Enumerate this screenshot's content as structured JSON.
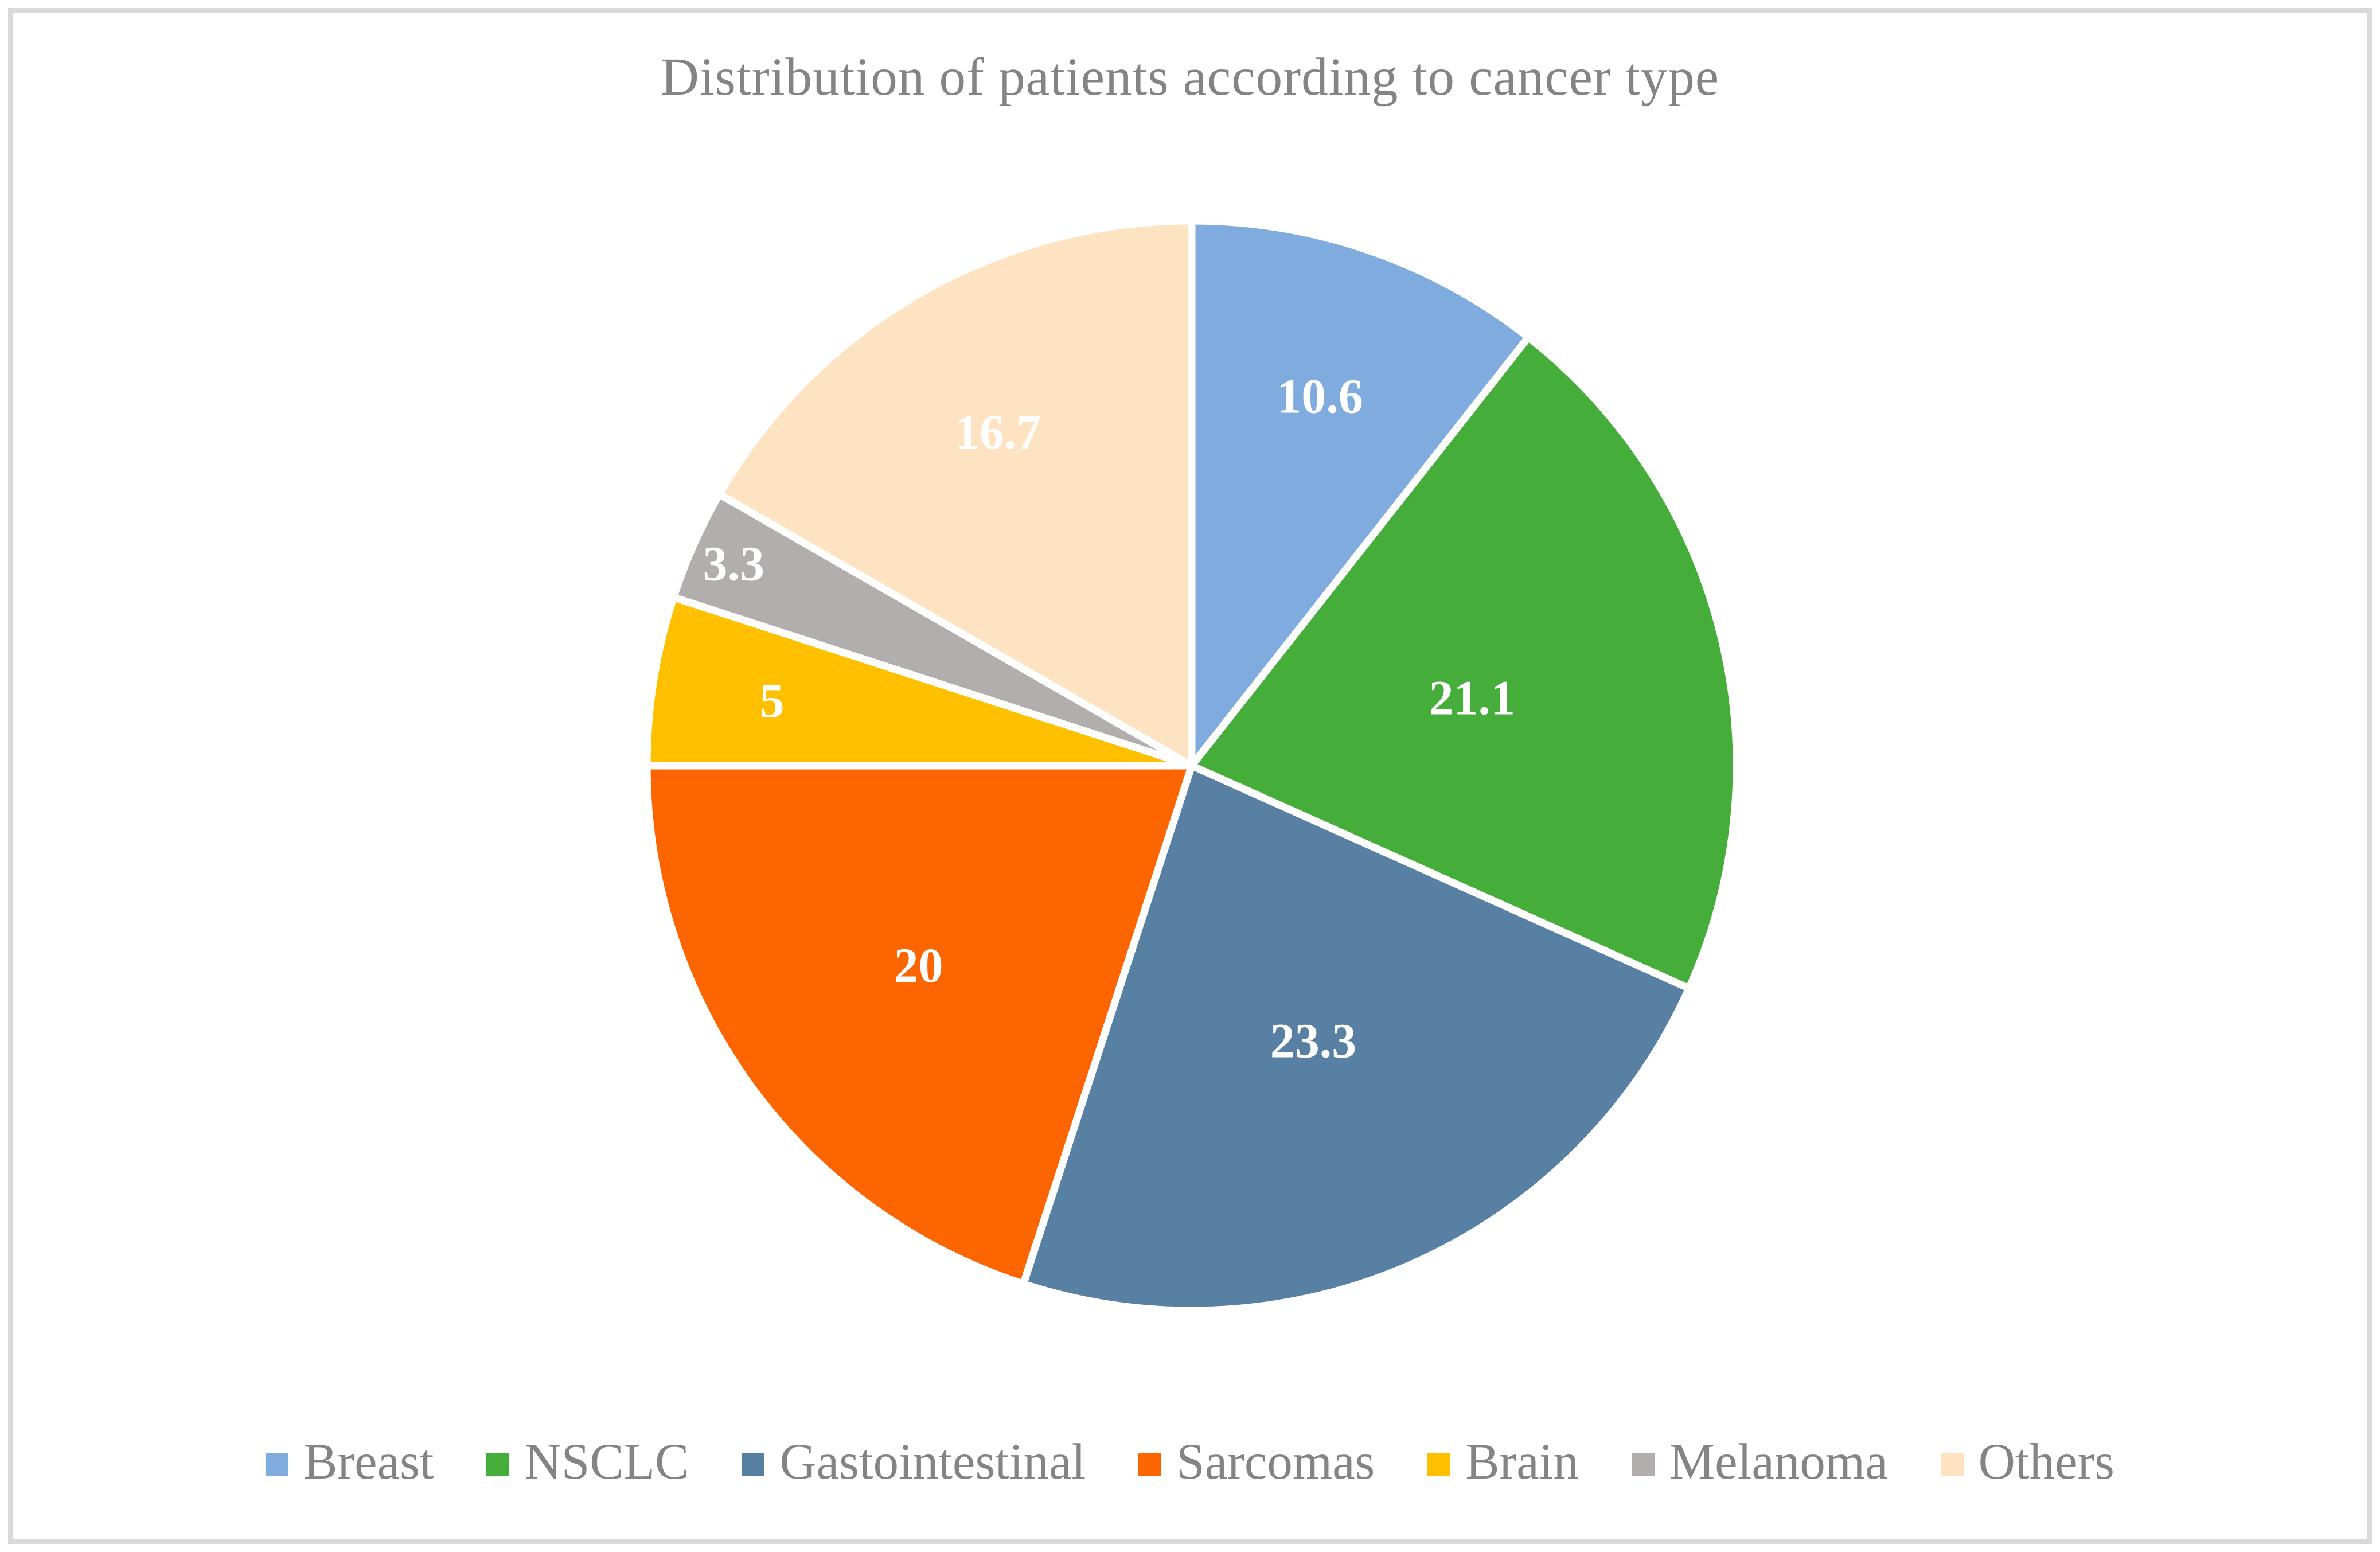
{
  "title": "Distribution of patients according to cancer type",
  "chart_data": {
    "type": "pie",
    "title": "Distribution of patients according to cancer type",
    "categories": [
      "Breast",
      "NSCLC",
      "Gastointestinal",
      "Sarcomas",
      "Brain",
      "Melanoma",
      "Others"
    ],
    "values": [
      10.6,
      21.1,
      23.3,
      20,
      5,
      3.3,
      16.7
    ],
    "data_labels": [
      "10.6",
      "21.1",
      "23.3",
      "20",
      "5",
      "3.3",
      "16.7"
    ],
    "colors": [
      "#80ABDE",
      "#45AD3A",
      "#5880A3",
      "#FD6500",
      "#FFC000",
      "#B2AEAE",
      "#FDE3C1"
    ],
    "start_angle_deg": 0,
    "direction": "clockwise",
    "label_color": "#FFFFFF",
    "label_font_size": 86,
    "label_radius_fractions": [
      0.72,
      0.53,
      0.55,
      0.62,
      0.78,
      0.92,
      0.71
    ],
    "slice_separator_color": "#FFFFFF",
    "legend_position": "bottom",
    "text_color": "#848484",
    "frame_border_color": "#D9D9D9",
    "background_color": "#FFFFFF"
  },
  "legend": {
    "items": [
      {
        "label": "Breast",
        "color": "#80ABDE"
      },
      {
        "label": "NSCLC",
        "color": "#45AD3A"
      },
      {
        "label": "Gastointestinal",
        "color": "#5880A3"
      },
      {
        "label": "Sarcomas",
        "color": "#FD6500"
      },
      {
        "label": "Brain",
        "color": "#FFC000"
      },
      {
        "label": "Melanoma",
        "color": "#B2AEAE"
      },
      {
        "label": "Others",
        "color": "#FDE3C1"
      }
    ]
  }
}
